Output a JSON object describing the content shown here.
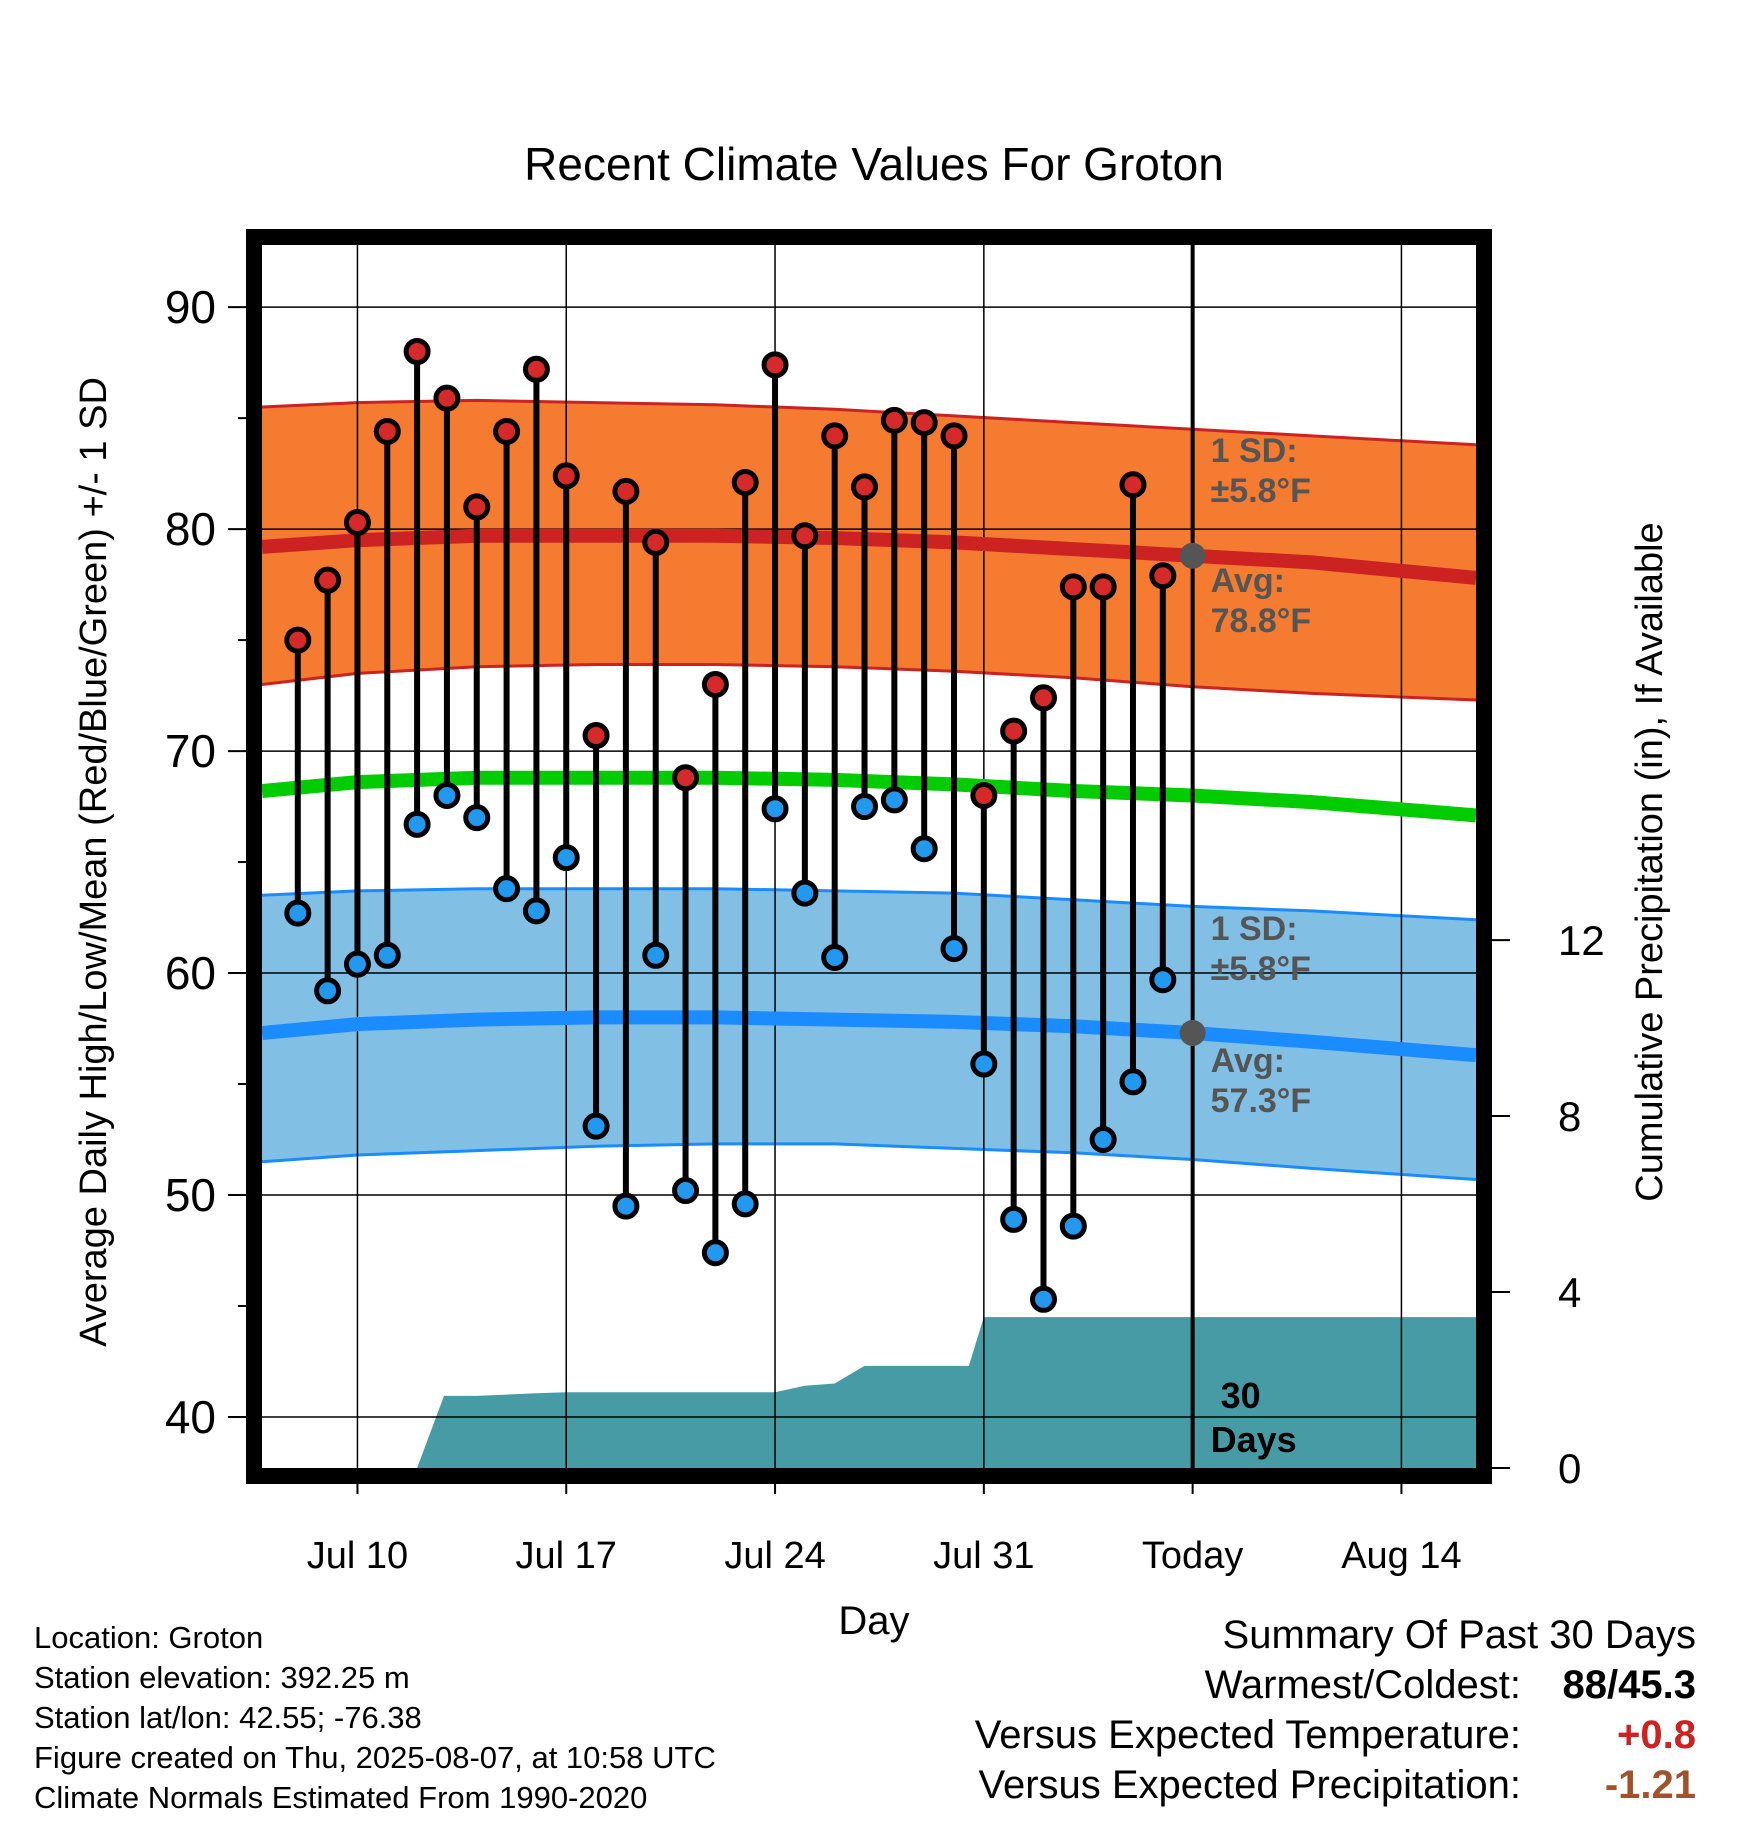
{
  "chart_data": {
    "type": "line",
    "title": "Recent Climate Values For Groton",
    "xlabel": "Day",
    "ylabel": "Average Daily High/Low/Mean (Red/Blue/Green) +/- 1 SD",
    "y2label": "Cumulative Precipitation (in), If Available",
    "x_tick_labels": [
      "Jul 10",
      "Jul 17",
      "Jul 24",
      "Jul 31",
      "Today",
      "Aug 14"
    ],
    "x_tick_days": [
      10,
      17,
      24,
      31,
      38,
      45
    ],
    "y_ticks": [
      40,
      50,
      60,
      70,
      80,
      90
    ],
    "y2_ticks": [
      0,
      4,
      8,
      12
    ],
    "ylim": [
      37.7,
      92.8
    ],
    "y2lim": [
      0,
      27.8
    ],
    "xlim": [
      6.8,
      47.5
    ],
    "grid": true,
    "today_day": 38,
    "observed": {
      "days": [
        8,
        9,
        10,
        11,
        12,
        13,
        14,
        15,
        16,
        17,
        18,
        19,
        20,
        21,
        22,
        23,
        24,
        25,
        26,
        27,
        28,
        29,
        30,
        31,
        32,
        33,
        34,
        35,
        36,
        37
      ],
      "high": [
        75,
        77.7,
        80.3,
        84.4,
        88,
        85.9,
        81,
        84.4,
        87.2,
        82.4,
        70.7,
        81.7,
        79.4,
        68.8,
        73,
        82.1,
        87.4,
        79.7,
        84.2,
        81.9,
        84.9,
        84.8,
        84.2,
        68,
        70.9,
        72.4,
        77.4,
        77.4,
        82,
        77.9
      ],
      "low": [
        62.7,
        59.2,
        60.4,
        60.8,
        66.7,
        68,
        67,
        63.8,
        62.8,
        65.2,
        53.1,
        49.5,
        60.8,
        50.2,
        47.4,
        49.6,
        67.4,
        63.6,
        60.7,
        67.5,
        67.8,
        65.6,
        61.1,
        55.9,
        48.9,
        45.3,
        48.6,
        52.5,
        55.1,
        59.7
      ]
    },
    "normals": {
      "days": [
        6.8,
        10,
        14,
        18,
        22,
        26,
        30,
        34,
        38,
        42,
        47.5
      ],
      "avg_high": [
        79.2,
        79.5,
        79.7,
        79.7,
        79.7,
        79.6,
        79.4,
        79.1,
        78.8,
        78.5,
        77.8
      ],
      "high_plus_sd": [
        85.5,
        85.7,
        85.8,
        85.7,
        85.6,
        85.4,
        85.1,
        84.8,
        84.5,
        84.2,
        83.8
      ],
      "high_minus_sd": [
        73,
        73.5,
        73.8,
        73.9,
        73.9,
        73.8,
        73.6,
        73.3,
        72.9,
        72.6,
        72.3
      ],
      "avg_mean": [
        68.2,
        68.6,
        68.8,
        68.8,
        68.8,
        68.7,
        68.5,
        68.2,
        68,
        67.7,
        67.1
      ],
      "avg_low": [
        57.3,
        57.7,
        57.9,
        58,
        58,
        57.9,
        57.8,
        57.6,
        57.3,
        56.9,
        56.3
      ],
      "low_plus_sd": [
        63.5,
        63.7,
        63.8,
        63.8,
        63.8,
        63.7,
        63.6,
        63.3,
        63,
        62.8,
        62.4
      ],
      "low_minus_sd": [
        51.5,
        51.8,
        52,
        52.2,
        52.3,
        52.3,
        52.1,
        51.9,
        51.6,
        51.2,
        50.7
      ]
    },
    "precip": {
      "days": [
        9.2,
        10,
        11,
        11.2,
        12,
        12.9,
        14,
        16,
        17,
        18,
        19,
        20,
        21,
        22,
        23,
        24,
        25,
        26,
        27,
        28,
        29,
        30,
        30.5,
        31,
        38,
        47.5
      ],
      "cumulative": [
        0,
        0,
        0,
        0,
        0,
        1.64,
        1.64,
        1.7,
        1.72,
        1.72,
        1.72,
        1.72,
        1.72,
        1.72,
        1.72,
        1.72,
        1.87,
        1.92,
        2.32,
        2.32,
        2.32,
        2.32,
        2.32,
        3.43,
        3.43,
        3.43
      ]
    },
    "annotations": {
      "high_sd_label": "1 SD:",
      "high_sd_value": "±5.8°F",
      "high_avg_label": "Avg:",
      "high_avg_value": "78.8°F",
      "low_sd_label": "1 SD:",
      "low_sd_value": "±5.8°F",
      "low_avg_label": "Avg:",
      "low_avg_value": "57.3°F",
      "days_number": "30",
      "days_word": "Days"
    },
    "colors": {
      "high_band": "#f47b30",
      "high_line": "#cc2222",
      "mean_line": "#00cc00",
      "low_band": "#82bfe5",
      "low_line": "#1a8cff",
      "precip": "#479ba4",
      "high_dot": "#d62a2a",
      "low_dot": "#2299ee",
      "today_dot": "#555555",
      "annotation": "#555555"
    }
  },
  "info": {
    "location": "Location: Groton",
    "elevation": "Station elevation: 392.25 m",
    "latlon": "Station lat/lon: 42.55; -76.38",
    "created": "Figure created on Thu, 2025-08-07, at 10:58 UTC",
    "normals": "Climate Normals Estimated From 1990-2020"
  },
  "summary": {
    "title": "Summary Of Past 30 Days",
    "warm_cold_label": "Warmest/Coldest:",
    "warm_cold_value": "88/45.3",
    "temp_label": "Versus Expected Temperature:",
    "temp_value": "+0.8",
    "temp_color": "#cc2222",
    "precip_label": "Versus Expected Precipitation:",
    "precip_value": "-1.21",
    "precip_color": "#a0522d"
  }
}
